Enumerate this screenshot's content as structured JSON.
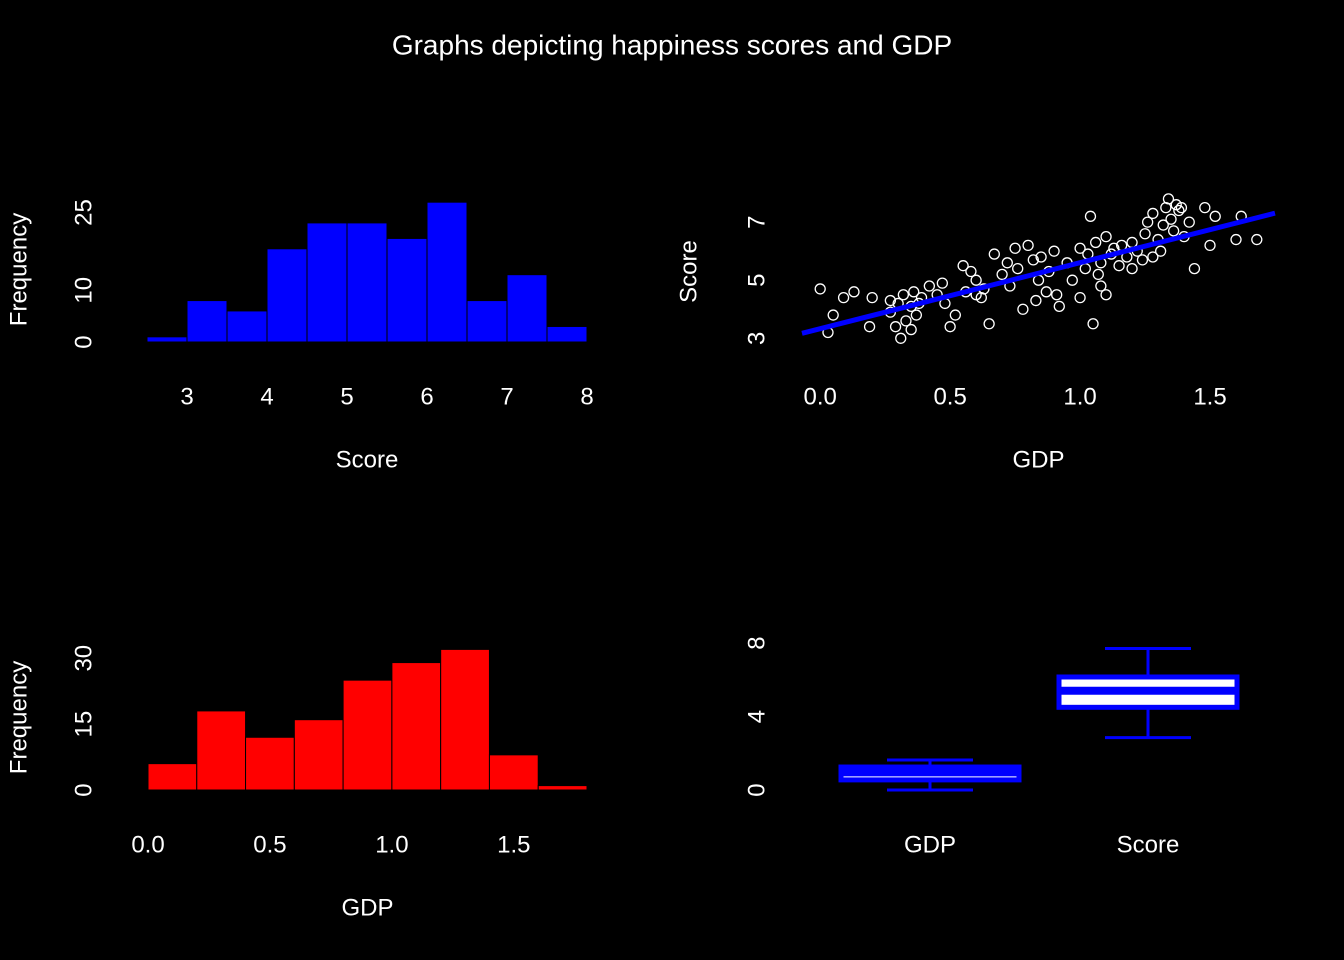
{
  "title": "Graphs depicting happiness scores and GDP",
  "chart_data": [
    {
      "type": "histogram",
      "xlabel": "Score",
      "ylabel": "Frequency",
      "color": "blue",
      "bins": [
        2.5,
        3,
        3.5,
        4,
        4.5,
        5,
        5.5,
        6,
        6.5,
        7,
        7.5,
        8
      ],
      "values": [
        1,
        8,
        6,
        18,
        23,
        23,
        20,
        27,
        8,
        13,
        3
      ],
      "xlim": [
        2.5,
        8
      ],
      "xticks": [
        3,
        4,
        5,
        6,
        7,
        8
      ],
      "ylim": [
        0,
        28
      ],
      "yticks": [
        0,
        10,
        25
      ]
    },
    {
      "type": "scatter",
      "xlabel": "GDP",
      "ylabel": "Score",
      "color": "white",
      "x": [
        0.0,
        0.03,
        0.05,
        0.09,
        0.13,
        0.2,
        0.19,
        0.27,
        0.27,
        0.29,
        0.31,
        0.3,
        0.32,
        0.33,
        0.35,
        0.36,
        0.37,
        0.38,
        0.39,
        0.35,
        0.42,
        0.45,
        0.47,
        0.48,
        0.5,
        0.52,
        0.55,
        0.56,
        0.58,
        0.6,
        0.62,
        0.63,
        0.6,
        0.65,
        0.67,
        0.7,
        0.72,
        0.73,
        0.75,
        0.76,
        0.78,
        0.8,
        0.82,
        0.83,
        0.84,
        0.85,
        0.87,
        0.88,
        0.9,
        0.91,
        0.92,
        0.95,
        0.97,
        1.0,
        1.0,
        1.02,
        1.03,
        1.04,
        1.05,
        1.06,
        1.07,
        1.08,
        1.08,
        1.1,
        1.1,
        1.12,
        1.13,
        1.15,
        1.16,
        1.18,
        1.2,
        1.2,
        1.22,
        1.24,
        1.25,
        1.26,
        1.28,
        1.28,
        1.3,
        1.31,
        1.32,
        1.33,
        1.34,
        1.35,
        1.36,
        1.37,
        1.38,
        1.39,
        1.4,
        1.42,
        1.44,
        1.48,
        1.5,
        1.52,
        1.6,
        1.62,
        1.68
      ],
      "y": [
        4.7,
        3.2,
        3.8,
        4.4,
        4.6,
        4.4,
        3.4,
        4.3,
        3.9,
        3.4,
        3.0,
        4.2,
        4.5,
        3.6,
        3.3,
        4.6,
        3.8,
        4.2,
        4.4,
        4.1,
        4.8,
        4.5,
        4.9,
        4.2,
        3.4,
        3.8,
        5.5,
        4.6,
        5.3,
        5.0,
        4.4,
        4.7,
        4.5,
        3.5,
        5.9,
        5.2,
        5.6,
        4.8,
        6.1,
        5.4,
        4.0,
        6.2,
        5.7,
        4.3,
        5.0,
        5.8,
        4.6,
        5.3,
        6.0,
        4.5,
        4.1,
        5.6,
        5.0,
        6.1,
        4.4,
        5.4,
        5.9,
        7.2,
        3.5,
        6.3,
        5.2,
        4.8,
        5.6,
        6.5,
        4.5,
        5.9,
        6.1,
        5.5,
        6.2,
        5.8,
        6.3,
        5.4,
        6.0,
        5.7,
        6.6,
        7.0,
        5.8,
        7.3,
        6.4,
        6.0,
        6.9,
        7.5,
        7.8,
        7.1,
        6.7,
        7.6,
        7.4,
        7.5,
        6.5,
        7.0,
        5.4,
        7.5,
        6.2,
        7.2,
        6.4,
        7.2,
        6.4
      ],
      "fit": {
        "color": "blue",
        "x": [
          -0.07,
          1.75
        ],
        "y": [
          3.17,
          7.31
        ]
      },
      "xlim": [
        -0.07,
        1.75
      ],
      "xticks": [
        {
          "value": 0,
          "label": "0.0"
        },
        0.5,
        {
          "value": 1,
          "label": "1.0"
        },
        1.5
      ],
      "ylim": [
        2.7,
        7.9
      ],
      "yticks": [
        3,
        5,
        7
      ]
    },
    {
      "type": "histogram",
      "xlabel": "GDP",
      "ylabel": "Frequency",
      "color": "red",
      "bins": [
        0,
        0.2,
        0.4,
        0.6,
        0.8,
        1.0,
        1.2,
        1.4,
        1.6,
        1.8
      ],
      "values": [
        6,
        18,
        12,
        16,
        25,
        29,
        32,
        8,
        1
      ],
      "xlim": [
        0,
        1.8
      ],
      "xticks": [
        {
          "value": 0,
          "label": "0.0"
        },
        0.5,
        {
          "value": 1,
          "label": "1.0"
        },
        1.5
      ],
      "ylim": [
        0,
        33
      ],
      "yticks": [
        0,
        15,
        30
      ]
    },
    {
      "type": "box",
      "color": "blue",
      "categories": [
        "GDP",
        "Score"
      ],
      "boxes": [
        {
          "whislo": 0,
          "q1": 0.55,
          "median": 0.96,
          "q3": 1.25,
          "whishi": 1.63
        },
        {
          "whislo": 2.85,
          "q1": 4.5,
          "median": 5.4,
          "q3": 6.15,
          "whishi": 7.7
        }
      ],
      "ylim": [
        0,
        8
      ],
      "yticks": [
        0,
        4,
        8
      ]
    }
  ]
}
